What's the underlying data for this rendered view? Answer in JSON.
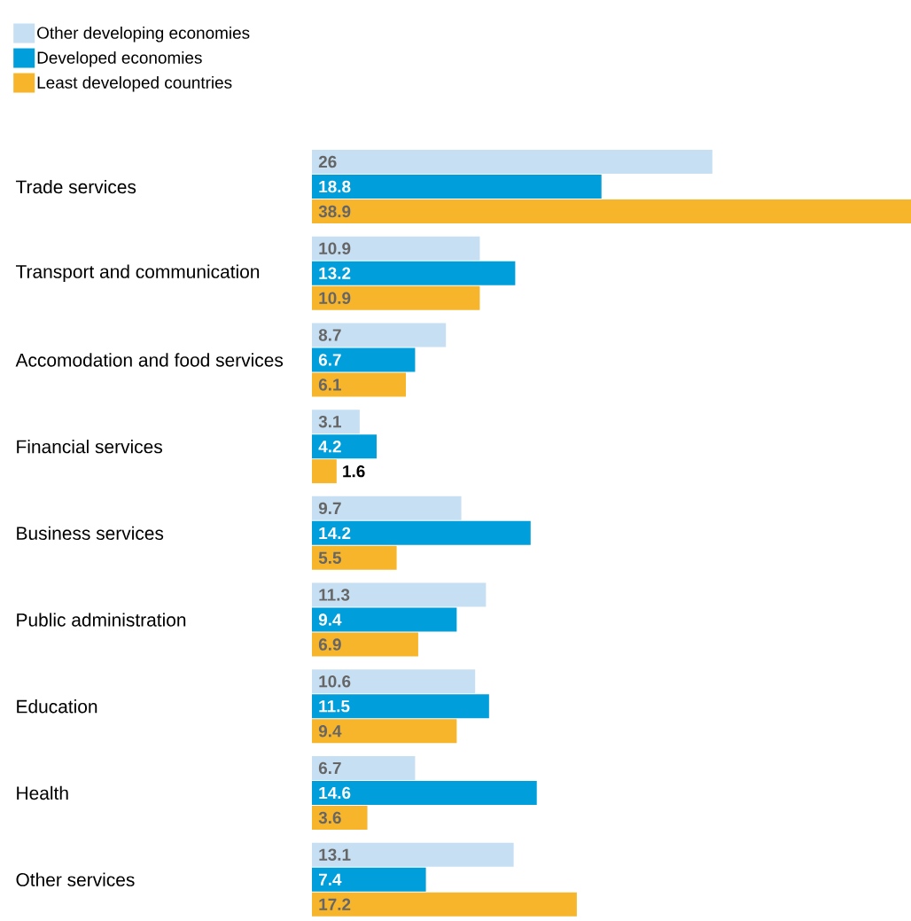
{
  "chart_data": {
    "type": "bar",
    "orientation": "horizontal",
    "data_labels": true,
    "legend": "top left",
    "categories": [
      "Trade services",
      "Transport and communication",
      "Accomodation and food services",
      "Financial services",
      "Business services",
      "Public administration",
      "Education",
      "Health",
      "Other services"
    ],
    "series": [
      {
        "name": "Other developing economies",
        "color": "#c6dff3",
        "values": [
          26,
          10.9,
          8.7,
          3.1,
          9.7,
          11.3,
          10.6,
          6.7,
          13.1
        ]
      },
      {
        "name": "Developed economies",
        "color": "#009edb",
        "values": [
          18.8,
          13.2,
          6.7,
          4.2,
          14.2,
          9.4,
          11.5,
          14.6,
          7.4
        ]
      },
      {
        "name": "Least developed countries",
        "color": "#f7b52c",
        "values": [
          38.9,
          10.9,
          6.1,
          1.6,
          5.5,
          6.9,
          9.4,
          3.6,
          17.2
        ]
      }
    ]
  }
}
